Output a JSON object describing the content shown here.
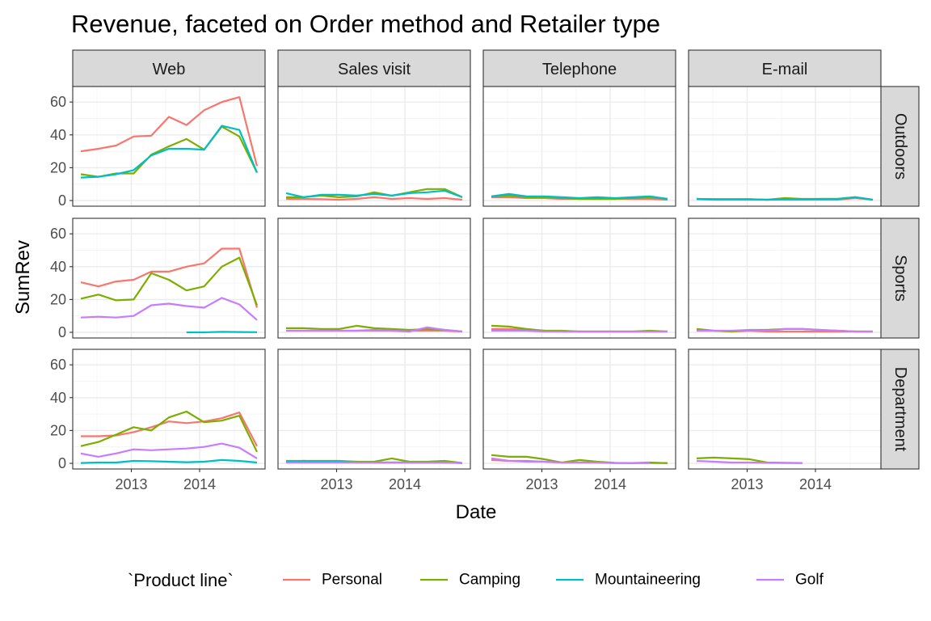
{
  "chart_data": {
    "type": "line",
    "title": "Revenue, faceted on Order method and Retailer type",
    "xlabel": "Date",
    "ylabel": "SumRev",
    "x_ticks": [
      "2013",
      "2014"
    ],
    "y_ticks": [
      "0",
      "20",
      "40",
      "60"
    ],
    "ylim": [
      0,
      66
    ],
    "grid": true,
    "legend": {
      "title": "`Product line`",
      "position": "bottom",
      "entries": [
        "Personal",
        "Camping",
        "Mountaineering",
        "Golf"
      ]
    },
    "columns": [
      "Web",
      "Sales visit",
      "Telephone",
      "E-mail"
    ],
    "rows": [
      "Outdoors",
      "Sports",
      "Department"
    ],
    "series_colors": {
      "Personal": "#F8766D",
      "Camping": "#7CAE00",
      "Mountaineering": "#00BFC4",
      "Golf": "#C77CFF"
    },
    "x": [
      "2012 Q2",
      "2012 Q3",
      "2012 Q4",
      "2013 Q1",
      "2013 Q2",
      "2013 Q3",
      "2013 Q4",
      "2014 Q1",
      "2014 Q2",
      "2014 Q3",
      "2014 Q4"
    ],
    "panels": [
      {
        "row": "Outdoors",
        "column": "Web",
        "series": [
          {
            "name": "Personal",
            "values": [
              30,
              31.5,
              33.5,
              39,
              39.5,
              51,
              46,
              55,
              60,
              63,
              21
            ]
          },
          {
            "name": "Camping",
            "values": [
              16,
              14.5,
              16.5,
              16.5,
              28,
              33,
              37.5,
              31,
              45,
              39,
              17
            ]
          },
          {
            "name": "Mountaineering",
            "values": [
              14,
              14.5,
              16,
              18.5,
              27.5,
              31.5,
              31.5,
              31,
              45.5,
              43,
              17
            ]
          }
        ]
      },
      {
        "row": "Outdoors",
        "column": "Sales visit",
        "series": [
          {
            "name": "Personal",
            "values": [
              1,
              1,
              0.8,
              0.5,
              1,
              2,
              1,
              1.5,
              1,
              1.5,
              0.5
            ]
          },
          {
            "name": "Camping",
            "values": [
              2,
              2,
              3,
              2,
              2.5,
              5,
              3,
              5,
              7,
              7,
              2
            ]
          },
          {
            "name": "Mountaineering",
            "values": [
              4.5,
              2,
              3.5,
              3.5,
              3,
              4,
              3,
              4.5,
              5,
              6,
              2
            ]
          }
        ]
      },
      {
        "row": "Outdoors",
        "column": "Telephone",
        "series": [
          {
            "name": "Personal",
            "values": [
              2,
              2,
              1.5,
              1.5,
              1,
              1,
              1,
              1,
              1,
              1,
              0.5
            ]
          },
          {
            "name": "Camping",
            "values": [
              2.5,
              3,
              2,
              2,
              1.5,
              1,
              1,
              1,
              1.5,
              2,
              1
            ]
          },
          {
            "name": "Mountaineering",
            "values": [
              2.5,
              4,
              2.5,
              2.5,
              2,
              1.5,
              2,
              1.5,
              2,
              2.5,
              1
            ]
          }
        ]
      },
      {
        "row": "Outdoors",
        "column": "E-mail",
        "series": [
          {
            "name": "Personal",
            "values": [
              0.8,
              0.5,
              0.5,
              0.5,
              0.5,
              0.5,
              0.5,
              0.5,
              0.5,
              1.5,
              0.5
            ]
          },
          {
            "name": "Camping",
            "values": [
              1,
              0.8,
              0.8,
              0.8,
              0.5,
              1.5,
              1,
              1,
              1,
              2,
              0.5
            ]
          },
          {
            "name": "Mountaineering",
            "values": [
              1,
              0.8,
              0.8,
              0.8,
              0.5,
              0.8,
              0.8,
              1,
              1,
              2,
              0.5
            ]
          }
        ]
      },
      {
        "row": "Sports",
        "column": "Web",
        "series": [
          {
            "name": "Personal",
            "values": [
              30.5,
              28,
              31,
              32,
              37,
              37,
              40,
              42,
              51,
              51,
              15
            ]
          },
          {
            "name": "Camping",
            "values": [
              20.5,
              23,
              19.5,
              20,
              36,
              32,
              25.5,
              28,
              40,
              45.5,
              16.5
            ]
          },
          {
            "name": "Mountaineering",
            "values": [
              null,
              null,
              null,
              null,
              null,
              null,
              0,
              0,
              0.3,
              0.2,
              0.1
            ]
          },
          {
            "name": "Golf",
            "values": [
              9,
              9.5,
              9,
              10,
              16.5,
              17.5,
              16,
              15,
              21,
              17,
              7.5
            ]
          }
        ]
      },
      {
        "row": "Sports",
        "column": "Sales visit",
        "series": [
          {
            "name": "Personal",
            "values": [
              1,
              1,
              1,
              1,
              1,
              1,
              1,
              1,
              1,
              1,
              0.5
            ]
          },
          {
            "name": "Camping",
            "values": [
              2.5,
              2.5,
              2,
              2,
              4,
              2.5,
              2,
              1.5,
              2,
              1.5,
              0.5
            ]
          },
          {
            "name": "Golf",
            "values": [
              1,
              1,
              1,
              1,
              1,
              1.5,
              1,
              0.5,
              3,
              1.5,
              0.5
            ]
          }
        ]
      },
      {
        "row": "Sports",
        "column": "Telephone",
        "series": [
          {
            "name": "Personal",
            "values": [
              2,
              2,
              1.5,
              1,
              0.5,
              0.5,
              0.5,
              0.5,
              0.5,
              0.5,
              0.5
            ]
          },
          {
            "name": "Camping",
            "values": [
              4,
              3.5,
              2,
              1,
              1,
              0.5,
              0.5,
              0.5,
              0.5,
              1,
              0.5
            ]
          },
          {
            "name": "Golf",
            "values": [
              1,
              1,
              1,
              0.5,
              0.5,
              0.5,
              0.5,
              0.5,
              0.5,
              0.5,
              0.5
            ]
          }
        ]
      },
      {
        "row": "Sports",
        "column": "E-mail",
        "series": [
          {
            "name": "Personal",
            "values": [
              1,
              1,
              0.5,
              1,
              0.5,
              0.5,
              0.5,
              0.5,
              0.5,
              0.5,
              0.5
            ]
          },
          {
            "name": "Camping",
            "values": [
              2,
              1,
              0.5,
              1.5,
              1.5,
              2,
              2,
              1.5,
              1,
              0.5,
              0.5
            ]
          },
          {
            "name": "Golf",
            "values": [
              1,
              1,
              1,
              1.5,
              1,
              2,
              2,
              1.5,
              1,
              0.5,
              0.5
            ]
          }
        ]
      },
      {
        "row": "Department",
        "column": "Web",
        "series": [
          {
            "name": "Personal",
            "values": [
              16.5,
              16.5,
              17,
              19,
              22,
              25.5,
              24.5,
              25.5,
              27.5,
              31,
              10.5
            ]
          },
          {
            "name": "Camping",
            "values": [
              10.5,
              13,
              17.5,
              22,
              20,
              28,
              31.5,
              25,
              26,
              29,
              7
            ]
          },
          {
            "name": "Mountaineering",
            "values": [
              0.2,
              0.5,
              0.5,
              1.5,
              1.3,
              1,
              0.7,
              1,
              2,
              1.5,
              0.5
            ]
          },
          {
            "name": "Golf",
            "values": [
              6,
              4,
              6,
              8.5,
              8,
              8.5,
              9,
              10,
              12,
              9.5,
              3
            ]
          }
        ]
      },
      {
        "row": "Department",
        "column": "Sales visit",
        "series": [
          {
            "name": "Personal",
            "values": [
              1,
              1,
              1,
              1,
              1,
              0.5,
              0.5,
              0.5,
              0.5,
              0.5,
              0.2
            ]
          },
          {
            "name": "Camping",
            "values": [
              1.5,
              1.5,
              1.5,
              1.5,
              1,
              1,
              3,
              1,
              1,
              1.5,
              0.2
            ]
          },
          {
            "name": "Mountaineering",
            "values": [
              1,
              1.5,
              1,
              1,
              0.5,
              0.5,
              0.5,
              0.5,
              0.5,
              0.5,
              0.2
            ]
          },
          {
            "name": "Golf",
            "values": [
              0.5,
              0.5,
              0.5,
              0.5,
              0.5,
              0.5,
              0.5,
              0.5,
              0.5,
              0.5,
              0.2
            ]
          }
        ]
      },
      {
        "row": "Department",
        "column": "Telephone",
        "series": [
          {
            "name": "Personal",
            "values": [
              2,
              1.5,
              1.5,
              1,
              0.5,
              0.5,
              0.5,
              0.2,
              0.2,
              0.2,
              0.2
            ]
          },
          {
            "name": "Camping",
            "values": [
              5,
              4,
              4,
              2.5,
              0.5,
              2,
              1,
              0.3,
              0.2,
              0.5,
              0.1
            ]
          },
          {
            "name": "Golf",
            "values": [
              3,
              1.5,
              1,
              1,
              0.5,
              0.5,
              0.5,
              0.2,
              0.2,
              0.2,
              null
            ]
          }
        ]
      },
      {
        "row": "Department",
        "column": "E-mail",
        "series": [
          {
            "name": "Camping",
            "values": [
              3,
              3.5,
              3,
              2.5,
              0.5,
              0.3,
              0.2,
              null,
              null,
              null,
              null
            ]
          },
          {
            "name": "Golf",
            "values": [
              1.5,
              1,
              0.5,
              0.5,
              0.3,
              0.2,
              0.2,
              null,
              null,
              null,
              null
            ]
          }
        ]
      }
    ]
  }
}
